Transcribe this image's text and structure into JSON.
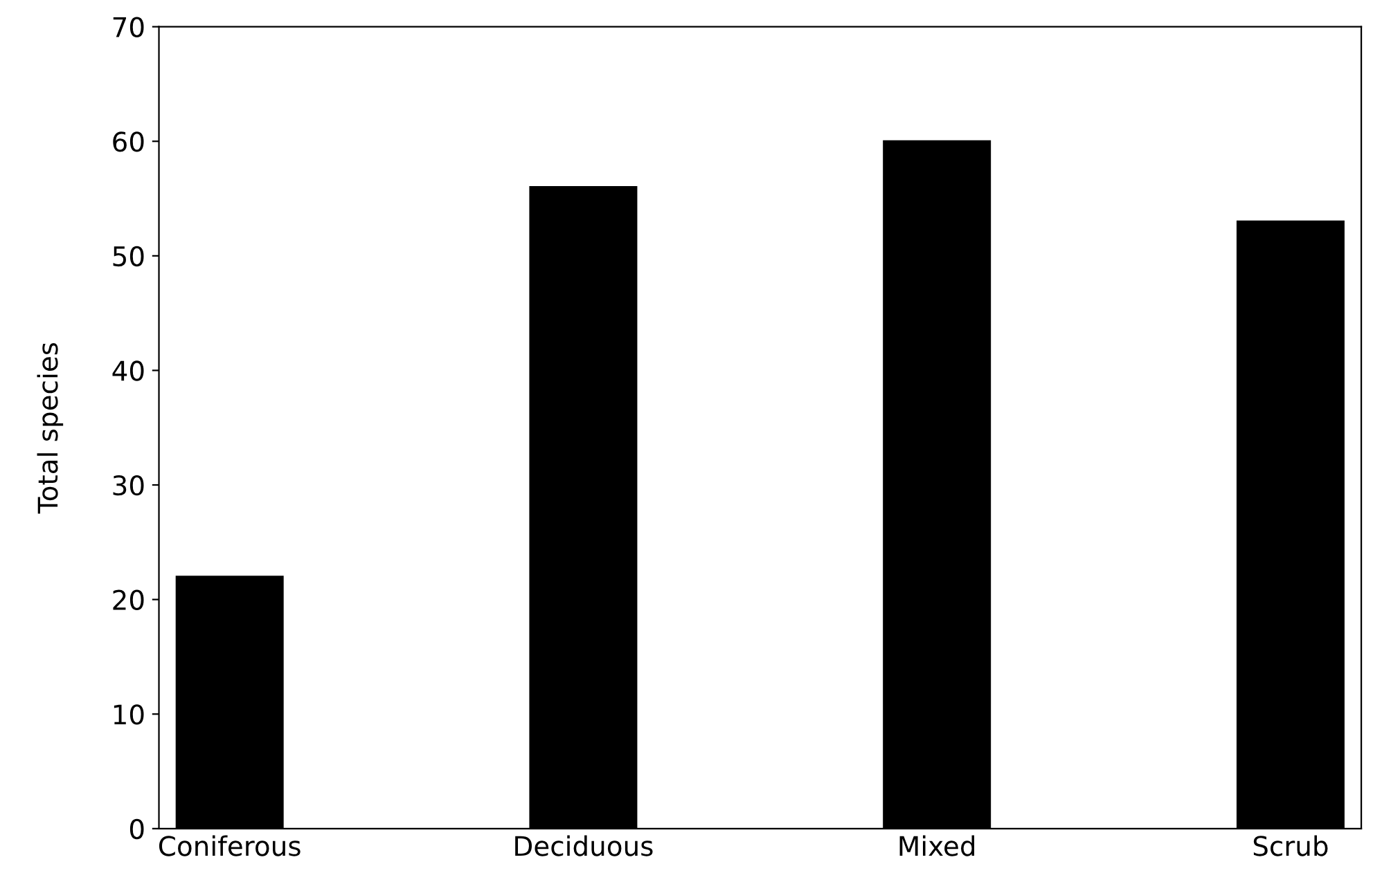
{
  "chart_data": {
    "type": "bar",
    "ylabel": "Total species",
    "categories": [
      "Coniferous",
      "Deciduous",
      "Mixed",
      "Scrub"
    ],
    "values": [
      22,
      56,
      60,
      53
    ],
    "color": "#000000",
    "ylim": [
      0,
      70
    ],
    "yticks": [
      0,
      10,
      20,
      30,
      40,
      50,
      60,
      70
    ],
    "grid": false
  }
}
